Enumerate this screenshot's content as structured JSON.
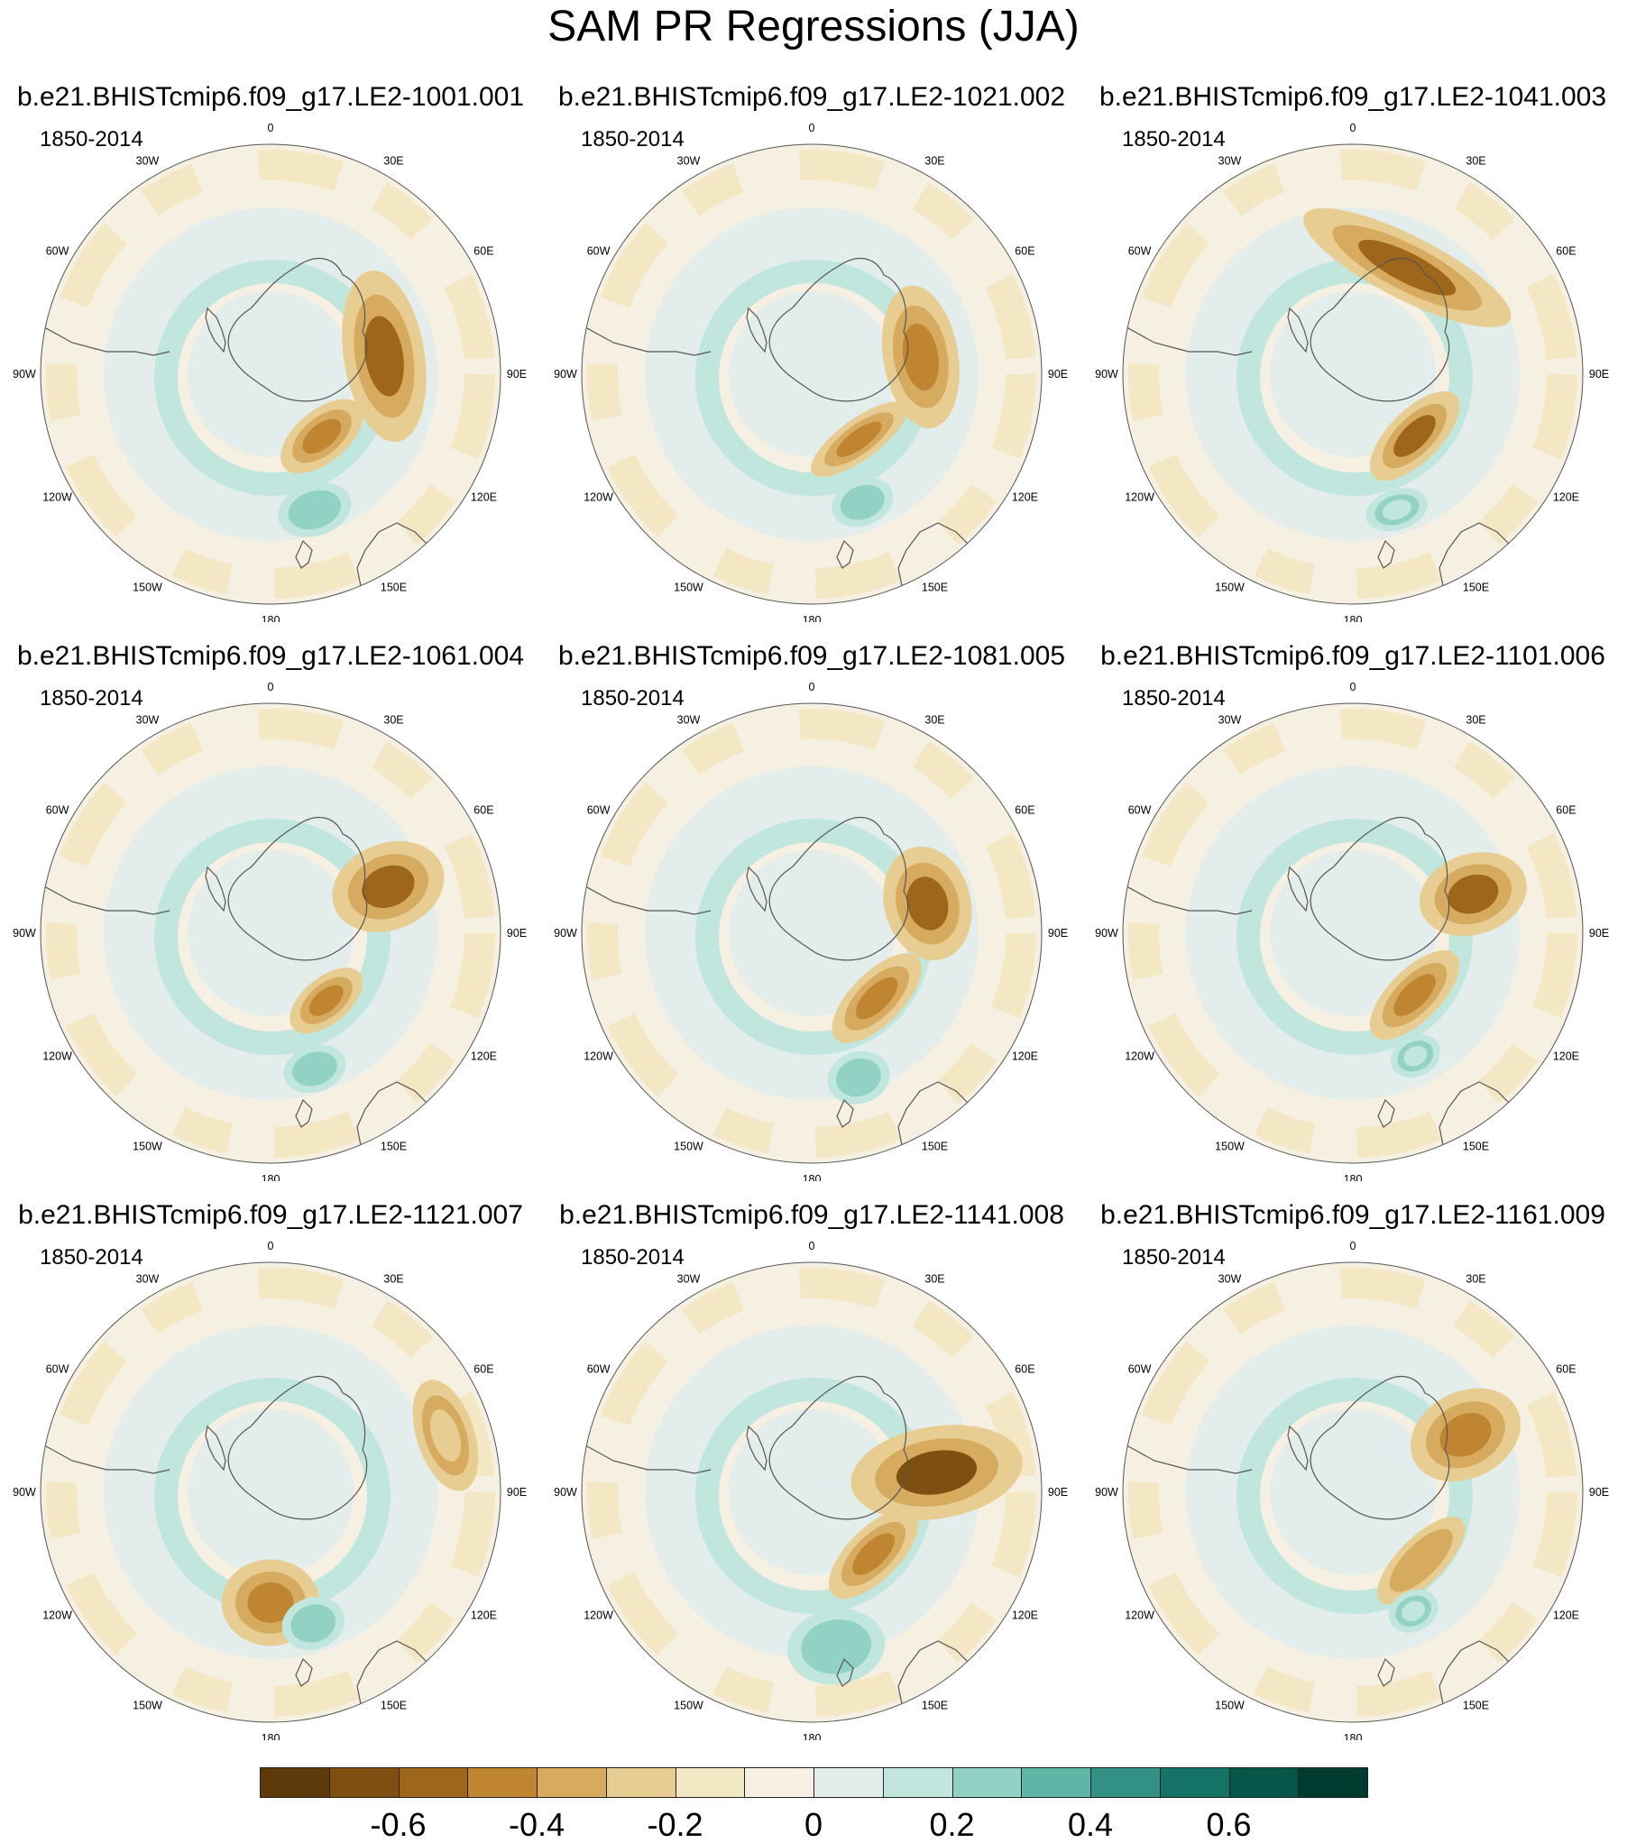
{
  "title": "SAM PR Regressions (JJA)",
  "period_label": "1850-2014",
  "panels": [
    {
      "title": "b.e21.BHISTcmip6.f09_g17.LE2-1001.001"
    },
    {
      "title": "b.e21.BHISTcmip6.f09_g17.LE2-1021.002"
    },
    {
      "title": "b.e21.BHISTcmip6.f09_g17.LE2-1041.003"
    },
    {
      "title": "b.e21.BHISTcmip6.f09_g17.LE2-1061.004"
    },
    {
      "title": "b.e21.BHISTcmip6.f09_g17.LE2-1081.005"
    },
    {
      "title": "b.e21.BHISTcmip6.f09_g17.LE2-1101.006"
    },
    {
      "title": "b.e21.BHISTcmip6.f09_g17.LE2-1121.007"
    },
    {
      "title": "b.e21.BHISTcmip6.f09_g17.LE2-1141.008"
    },
    {
      "title": "b.e21.BHISTcmip6.f09_g17.LE2-1161.009"
    }
  ],
  "longitude_labels": [
    "0",
    "30E",
    "60E",
    "90E",
    "120E",
    "150E",
    "180",
    "150W",
    "120W",
    "90W",
    "60W",
    "30W"
  ],
  "colorbar": {
    "levels": [
      "-0.6",
      "-0.4",
      "-0.2",
      "0",
      "0.2",
      "0.4",
      "0.6"
    ],
    "colors": [
      "#5e3a0b",
      "#7e4f10",
      "#9e661a",
      "#bf8530",
      "#d6ab60",
      "#e8cd93",
      "#f4e7c4",
      "#f5f0e1",
      "#e3eeec",
      "#c0e6dd",
      "#92d2c5",
      "#5fb6a7",
      "#339085",
      "#157266",
      "#055649",
      "#003b2f"
    ]
  }
}
